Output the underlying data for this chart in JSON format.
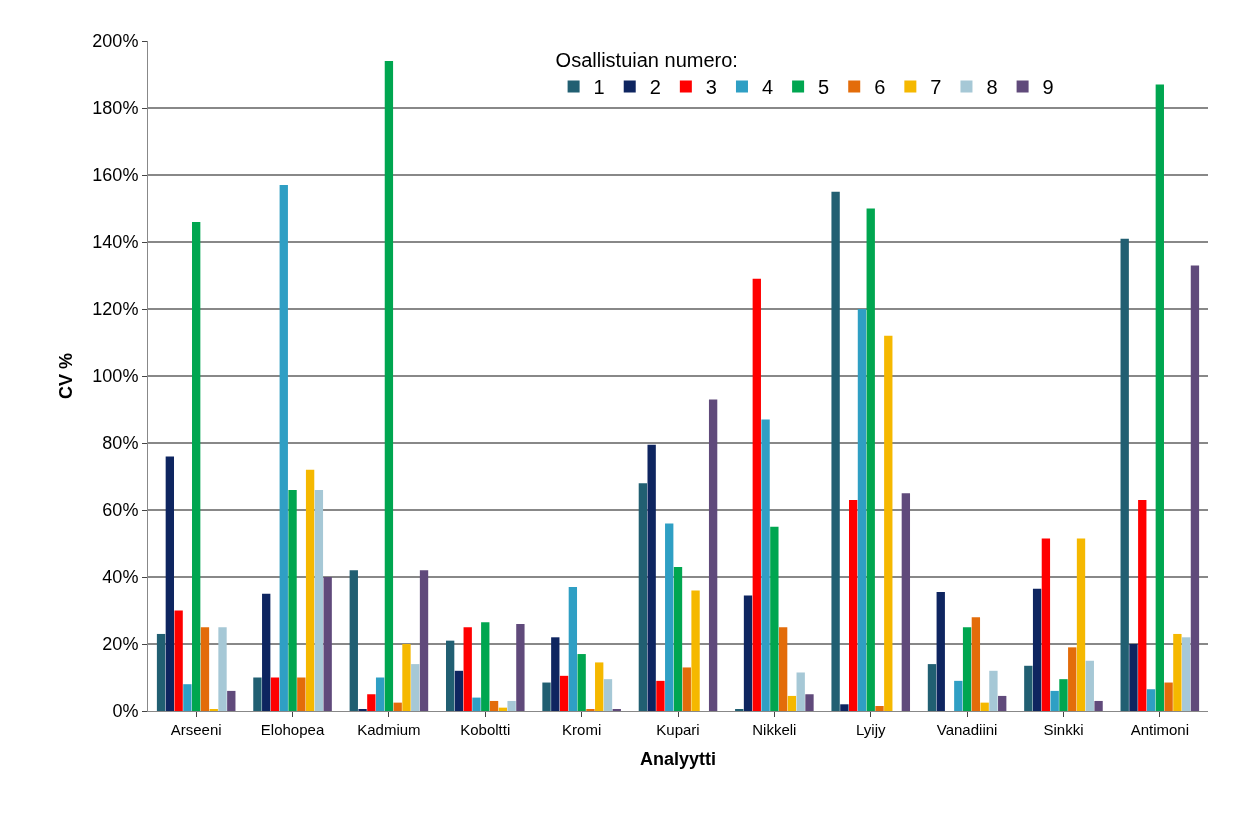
{
  "chart_data": {
    "type": "bar",
    "xlabel": "Analyytti",
    "ylabel": "CV %",
    "legend_title": "Osallistuian numero:",
    "legend": "top right",
    "grid": "y",
    "categories": [
      "Arseeni",
      "Elohopea",
      "Kadmium",
      "Koboltti",
      "Kromi",
      "Kupari",
      "Nikkeli",
      "Lyijy",
      "Vanadiini",
      "Sinkki",
      "Antimoni"
    ],
    "ylim": [
      0,
      200
    ],
    "yticks": [
      {
        "value": 0,
        "label": "0%"
      },
      {
        "value": 20,
        "label": "20%"
      },
      {
        "value": 40,
        "label": "40%"
      },
      {
        "value": 60,
        "label": "60%"
      },
      {
        "value": 80,
        "label": "80%"
      },
      {
        "value": 100,
        "label": "100%"
      },
      {
        "value": 120,
        "label": "120%"
      },
      {
        "value": 140,
        "label": "140%"
      },
      {
        "value": 160,
        "label": "160%"
      },
      {
        "value": 180,
        "label": "180%"
      },
      {
        "value": 200,
        "label": "200%"
      }
    ],
    "series": [
      {
        "name": "1",
        "color": "#215f72",
        "values": [
          23,
          10,
          42,
          21,
          8.5,
          68,
          0.5,
          155,
          14,
          13.5,
          141
        ]
      },
      {
        "name": "2",
        "color": "#0e2560",
        "values": [
          76,
          35,
          0.5,
          12,
          22,
          79.5,
          34.5,
          2,
          35.5,
          36.5,
          20
        ]
      },
      {
        "name": "3",
        "color": "#ff0000",
        "values": [
          30,
          10,
          5,
          25,
          10.5,
          9,
          129,
          63,
          0,
          51.5,
          63
        ]
      },
      {
        "name": "4",
        "color": "#2f9fc4",
        "values": [
          8,
          157,
          10,
          4,
          37,
          56,
          87,
          120,
          9,
          6,
          6.5
        ]
      },
      {
        "name": "5",
        "color": "#00a650",
        "values": [
          146,
          66,
          194,
          26.5,
          17,
          43,
          55,
          150,
          25,
          9.5,
          187
        ]
      },
      {
        "name": "6",
        "color": "#e36c0a",
        "values": [
          25,
          10,
          2.5,
          3,
          0.5,
          13,
          25,
          1.5,
          28,
          19,
          8.5
        ]
      },
      {
        "name": "7",
        "color": "#f5b800",
        "values": [
          0.5,
          72,
          20,
          1,
          14.5,
          36,
          4.5,
          112,
          2.5,
          51.5,
          23
        ]
      },
      {
        "name": "8",
        "color": "#a6c8d6",
        "values": [
          25,
          66,
          14,
          3,
          9.5,
          0,
          11.5,
          0,
          12,
          15,
          22
        ]
      },
      {
        "name": "9",
        "color": "#604a7b",
        "values": [
          6,
          40,
          42,
          26,
          0.5,
          93,
          5,
          65,
          4.5,
          3,
          133
        ]
      }
    ]
  }
}
